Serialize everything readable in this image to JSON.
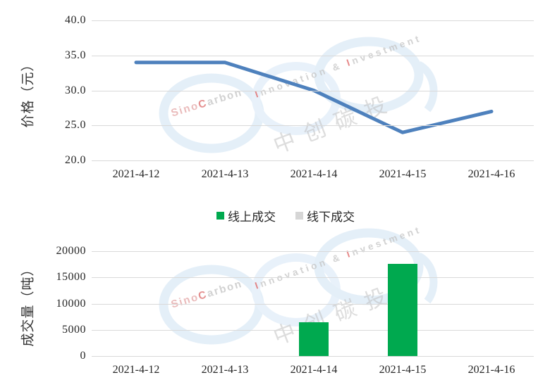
{
  "chart_data": [
    {
      "type": "line",
      "title": "",
      "ylabel": "价格（元）",
      "xlabel": "",
      "categories": [
        "2021-4-12",
        "2021-4-13",
        "2021-4-14",
        "2021-4-15",
        "2021-4-16"
      ],
      "values": [
        34,
        34,
        30,
        24,
        27
      ],
      "ylim": [
        20,
        40
      ],
      "yticks": [
        "40.0",
        "35.0",
        "30.0",
        "25.0",
        "20.0"
      ],
      "grid": true,
      "line_color": "#4e81bd"
    },
    {
      "type": "bar",
      "title": "",
      "ylabel": "成交量（吨）",
      "xlabel": "",
      "categories": [
        "2021-4-12",
        "2021-4-13",
        "2021-4-14",
        "2021-4-15",
        "2021-4-16"
      ],
      "series": [
        {
          "name": "线上成交",
          "color": "#00a94f",
          "values": [
            0,
            0,
            6500,
            17600,
            0
          ]
        },
        {
          "name": "线下成交",
          "color": "#d6d6d6",
          "values": [
            0,
            0,
            0,
            0,
            0
          ]
        }
      ],
      "ylim": [
        0,
        20000
      ],
      "yticks": [
        "20000",
        "15000",
        "10000",
        "5000",
        "0"
      ],
      "grid": true,
      "legend_position": "between-charts"
    }
  ],
  "watermark": {
    "brand": {
      "part1": "Sino",
      "part2": "C",
      "part3": "arbon"
    },
    "tagline": {
      "i1": "I",
      "rest1": "nnovation",
      "amp": "&",
      "i2": "I",
      "rest2": "nvestment"
    },
    "cn": "中创碳投"
  },
  "colors": {
    "gridline": "#d9d9d9",
    "tick_text": "#262626",
    "line_blue": "#4e81bd",
    "bar_green": "#00a94f",
    "legend_gray": "#d6d6d6",
    "watermark_ring": "#cfe3f4"
  }
}
